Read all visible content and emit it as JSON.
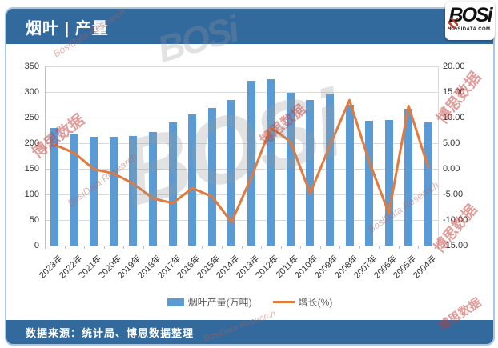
{
  "header": {
    "title": "烟叶 | 产量"
  },
  "logo": {
    "text": "BOSi",
    "sub": "BOSIDATA.COM"
  },
  "footer": {
    "source": "数据来源：统计局、博思数据整理"
  },
  "watermark": {
    "cn": "博思数据",
    "en": "BosiData Research",
    "logo": "BOSi"
  },
  "theme": {
    "header_blue": "#336a9e",
    "bar_blue": "#5b9bd5",
    "line_orange": "#e4793a",
    "border_blue": "#aac8e4",
    "grid_gray": "#d9d9d9"
  },
  "chart_data": {
    "type": "bar",
    "subtype": "bar+line combo, dual axis",
    "categories": [
      "2023年",
      "2022年",
      "2021年",
      "2020年",
      "2019年",
      "2018年",
      "2017年",
      "2016年",
      "2015年",
      "2014年",
      "2013年",
      "2012年",
      "2011年",
      "2010年",
      "2009年",
      "2008年",
      "2007年",
      "2006年",
      "2005年",
      "2004年"
    ],
    "series": [
      {
        "name": "烟叶产量(万吨)",
        "type": "bar",
        "axis": "left",
        "values": [
          230,
          219,
          212,
          212,
          214,
          222,
          240,
          257,
          268,
          284,
          322,
          325,
          299,
          284,
          297,
          275,
          244,
          246,
          267,
          240
        ]
      },
      {
        "name": "增长(%)",
        "type": "line",
        "axis": "right",
        "values": [
          4.7,
          3.1,
          -0.1,
          -0.9,
          -2.9,
          -5.8,
          -6.7,
          -3.8,
          -5.4,
          -10.4,
          -1.7,
          8.1,
          5.3,
          -4.8,
          4.5,
          13.4,
          1.4,
          -8.7,
          12.3,
          0.3
        ]
      }
    ],
    "left_axis": {
      "min": 0,
      "max": 350,
      "step": 50,
      "ticks": [
        "350",
        "300",
        "250",
        "200",
        "150",
        "100",
        "50",
        "0"
      ]
    },
    "right_axis": {
      "min": -15,
      "max": 20,
      "step": 5,
      "ticks": [
        "20.00",
        "15.00",
        "10.00",
        "5.00",
        "0.00",
        "-5.00",
        "-10.00",
        "-15.00"
      ]
    },
    "grid": true,
    "legend_position": "bottom"
  }
}
